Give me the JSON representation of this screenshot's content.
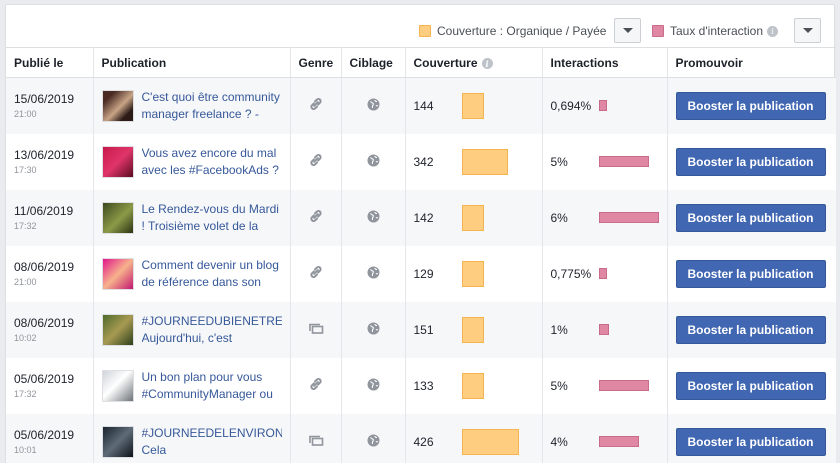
{
  "legend": {
    "coverage_label": "Couverture : Organique / Payée",
    "interaction_label": "Taux d'interaction",
    "info_glyph": "i",
    "coverage_color": "#ffcd80",
    "interaction_color": "#e087a4"
  },
  "columns": {
    "published": "Publié le",
    "publication": "Publication",
    "type": "Genre",
    "targeting": "Ciblage",
    "coverage": "Couverture",
    "interactions": "Interactions",
    "promote": "Promouvoir"
  },
  "rows": [
    {
      "date": "15/06/2019",
      "time": "21:00",
      "text": "C'est quoi être community manager freelance ? -",
      "type_icon": "link-icon",
      "coverage": "144",
      "coverage_value": 144,
      "interaction": "0,694%",
      "interaction_value": 0.694,
      "button": "Booster la publication",
      "thumb": "portrait-dark"
    },
    {
      "date": "13/06/2019",
      "time": "17:30",
      "text": "Vous avez encore du mal avec les #FacebookAds ?",
      "type_icon": "link-icon",
      "coverage": "342",
      "coverage_value": 342,
      "interaction": "5%",
      "interaction_value": 5,
      "button": "Booster la publication",
      "thumb": "pink-red"
    },
    {
      "date": "11/06/2019",
      "time": "17:32",
      "text": "Le Rendez-vous du Mardi ! Troisième volet de la",
      "type_icon": "link-icon",
      "coverage": "142",
      "coverage_value": 142,
      "interaction": "6%",
      "interaction_value": 6,
      "button": "Booster la publication",
      "thumb": "olive"
    },
    {
      "date": "08/06/2019",
      "time": "21:00",
      "text": "Comment devenir un blog de référence dans son",
      "type_icon": "link-icon",
      "coverage": "129",
      "coverage_value": 129,
      "interaction": "0,775%",
      "interaction_value": 0.775,
      "button": "Booster la publication",
      "thumb": "magenta-portrait"
    },
    {
      "date": "08/06/2019",
      "time": "10:02",
      "text": "#JOURNEEDUBIENETRE Aujourd'hui, c'est",
      "type_icon": "album-icon",
      "coverage": "151",
      "coverage_value": 151,
      "interaction": "1%",
      "interaction_value": 1,
      "button": "Booster la publication",
      "thumb": "nature"
    },
    {
      "date": "05/06/2019",
      "time": "17:32",
      "text": "Un bon plan pour vous #CommunityManager ou",
      "type_icon": "link-icon",
      "coverage": "133",
      "coverage_value": 133,
      "interaction": "5%",
      "interaction_value": 5,
      "button": "Booster la publication",
      "thumb": "laptop"
    },
    {
      "date": "05/06/2019",
      "time": "10:01",
      "text": "#JOURNEEDELENVIRONNEMENT Cela",
      "type_icon": "album-icon",
      "coverage": "426",
      "coverage_value": 426,
      "interaction": "4%",
      "interaction_value": 4,
      "button": "Booster la publication",
      "thumb": "dark-poster"
    }
  ]
}
